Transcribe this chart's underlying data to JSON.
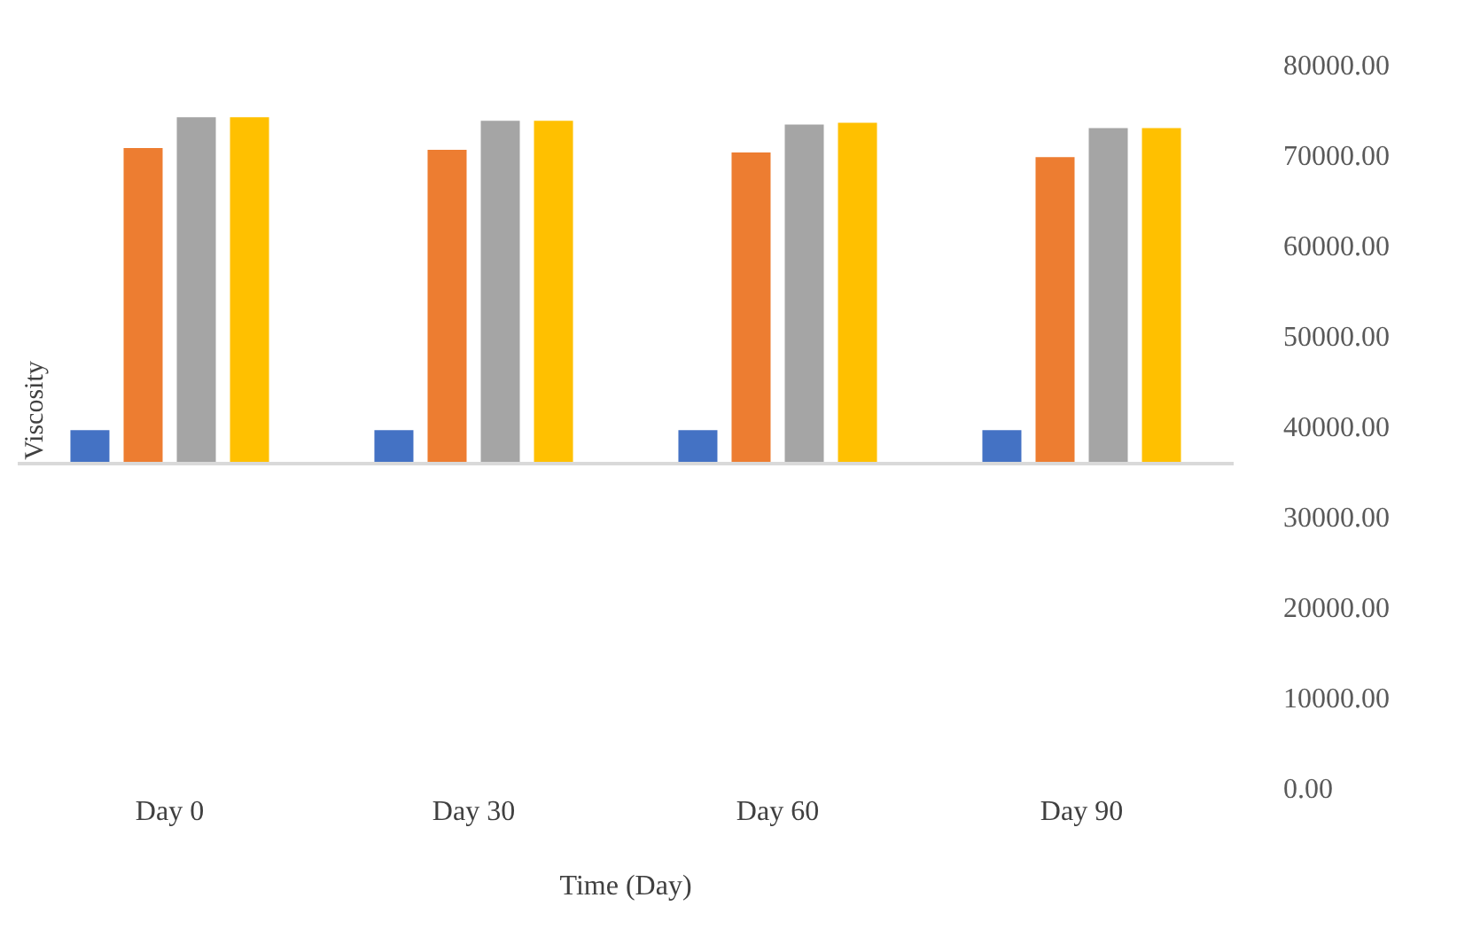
{
  "chart_data": {
    "type": "bar",
    "xlabel": "Time (Day)",
    "ylabel": "Viscosity",
    "categories": [
      "Day 0",
      "Day 30",
      "Day 60",
      "Day 90"
    ],
    "series": [
      {
        "color": "#4472c4",
        "values": [
          3900,
          3900,
          3900,
          3900
        ],
        "base": [
          36100,
          36100,
          36100,
          36100
        ]
      },
      {
        "color": "#ed7d31",
        "values": [
          35100,
          34900,
          34600,
          34100
        ],
        "base": [
          36100,
          36100,
          36100,
          36100
        ]
      },
      {
        "color": "#a5a5a5",
        "values": [
          38500,
          38100,
          37700,
          37300
        ],
        "base": [
          36100,
          36100,
          36100,
          36100
        ]
      },
      {
        "color": "#ffc000",
        "values": [
          38500,
          38100,
          37900,
          37300
        ],
        "base": [
          36100,
          36100,
          36100,
          36100
        ]
      }
    ],
    "ylim": [
      0,
      80000
    ],
    "yticks": [
      {
        "value": 0,
        "label": "0.00"
      },
      {
        "value": 10000,
        "label": "10000.00"
      },
      {
        "value": 20000,
        "label": "20000.00"
      },
      {
        "value": 30000,
        "label": "30000.00"
      },
      {
        "value": 40000,
        "label": "40000.00"
      },
      {
        "value": 50000,
        "label": "50000.00"
      },
      {
        "value": 60000,
        "label": "60000.00"
      },
      {
        "value": 70000,
        "label": "70000.00"
      },
      {
        "value": 80000,
        "label": "80000.00"
      }
    ],
    "ref_lines": [
      {
        "axis": "y",
        "value": 36100,
        "color": "#d9d9d9"
      }
    ],
    "grid": false,
    "legend": false
  }
}
